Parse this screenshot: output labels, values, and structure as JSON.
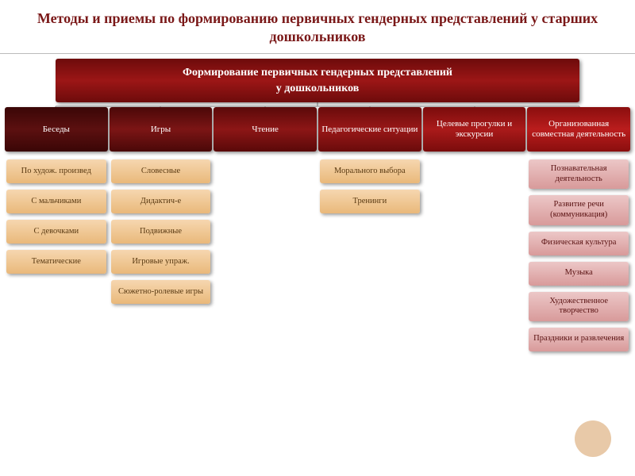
{
  "title": "Методы и приемы по формированию первичных гендерных представлений у старших дошкольников",
  "root": {
    "line1": "Формирование первичных гендерных представлений",
    "line2": "у дошкольников"
  },
  "root_bg": "linear-gradient(#6d0b0b,#9c1616,#6d0b0b)",
  "categories": [
    {
      "label": "Беседы",
      "bg": "linear-gradient(#3a0606,#5c1010,#3a0606)",
      "child_bg": "linear-gradient(#f6d7b0,#e9b87a)",
      "child_text": "#5a3a12",
      "children": [
        "По худож. произвед",
        "С мальчиками",
        "С девочками",
        "Тематические"
      ]
    },
    {
      "label": "Игры",
      "bg": "linear-gradient(#4a0808,#7c1515,#4a0808)",
      "child_bg": "linear-gradient(#f6d7b0,#e9b87a)",
      "child_text": "#5a3a12",
      "children": [
        "Словесные",
        "Дидактич-е",
        "Подвижные",
        "Игровые упраж.",
        "Сюжетно-ролевые игры"
      ]
    },
    {
      "label": "Чтение",
      "bg": "linear-gradient(#5a0909,#8d1616,#5a0909)",
      "child_bg": "",
      "child_text": "",
      "children": []
    },
    {
      "label": "Педагогические ситуации",
      "bg": "linear-gradient(#690b0b,#9a1818,#690b0b)",
      "child_bg": "linear-gradient(#f6d7b0,#e9b87a)",
      "child_text": "#5a3a12",
      "children": [
        "Морального выбора",
        "Тренинги"
      ]
    },
    {
      "label": "Целевые прогулки и экскурсии",
      "bg": "linear-gradient(#7a0c0c,#aa1a1a,#7a0c0c)",
      "child_bg": "",
      "child_text": "",
      "children": []
    },
    {
      "label": "Организованная совместная деятельность",
      "bg": "linear-gradient(#8a0e0e,#ba1d1d,#8a0e0e)",
      "child_bg": "linear-gradient(#ecc7c7,#d89a9a)",
      "child_text": "#5a1212",
      "children": [
        "Познавательная деятельность",
        "Развитие речи (коммуникация)",
        "Физическая культура",
        "Музыка",
        "Художественное творчество",
        "Праздники и развлечения"
      ]
    }
  ],
  "line_color": "#888888",
  "title_color": "#7a1818",
  "bg_color": "#ffffff"
}
